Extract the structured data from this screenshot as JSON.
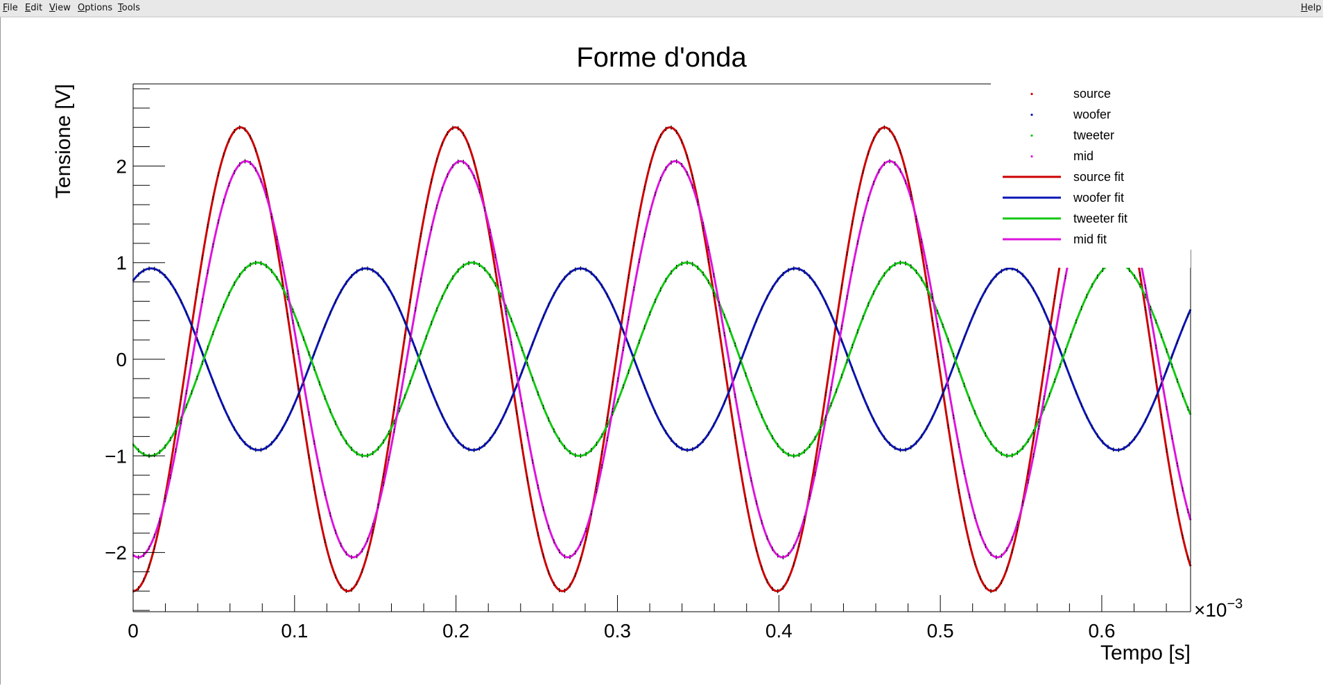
{
  "menu": {
    "file": "File",
    "edit": "Edit",
    "view": "View",
    "options": "Options",
    "tools": "Tools",
    "help": "Help"
  },
  "colors": {
    "source": "#cc0000",
    "woofer": "#0a14b4",
    "tweeter": "#14c814",
    "mid": "#dc14dc",
    "markers": "#000000"
  },
  "chart_data": {
    "type": "line",
    "title": "Forme d'onda",
    "xlabel": "Tempo [s]",
    "ylabel": "Tensione [V]",
    "x_multiplier": "×10",
    "x_multiplier_exp": "−3",
    "xlim": [
      0,
      0.000655
    ],
    "ylim": [
      -2.8,
      2.85
    ],
    "xticks": [
      0,
      0.1,
      0.2,
      0.3,
      0.4,
      0.5,
      0.6
    ],
    "xtick_labels": [
      "0",
      "0.1",
      "0.2",
      "0.3",
      "0.4",
      "0.5",
      "0.6"
    ],
    "yticks": [
      -2,
      -1,
      0,
      1,
      2
    ],
    "ytick_labels": [
      "−2",
      "−1",
      "0",
      "1",
      "2"
    ],
    "grid": false,
    "legend_position": "top-right",
    "sampling_interval_s": 3.3e-06,
    "series": [
      {
        "name": "source",
        "kind": "points",
        "color_key": "source",
        "amplitude": 2.4,
        "frequency_hz": 7520,
        "phase_rad": -1.5708,
        "offset": 0
      },
      {
        "name": "woofer",
        "kind": "points",
        "color_key": "woofer",
        "amplitude": 0.94,
        "frequency_hz": 7520,
        "phase_rad": 1.047,
        "offset": 0
      },
      {
        "name": "tweeter",
        "kind": "points",
        "color_key": "tweeter",
        "amplitude": 1.0,
        "frequency_hz": 7520,
        "phase_rad": -2.064,
        "offset": 0
      },
      {
        "name": "mid",
        "kind": "points",
        "color_key": "mid",
        "amplitude": 2.05,
        "frequency_hz": 7520,
        "phase_rad": -1.726,
        "offset": 0
      },
      {
        "name": "source fit",
        "kind": "line",
        "color_key": "source",
        "amplitude": 2.4,
        "frequency_hz": 7520,
        "phase_rad": -1.5708,
        "offset": 0
      },
      {
        "name": "woofer fit",
        "kind": "line",
        "color_key": "woofer",
        "amplitude": 0.94,
        "frequency_hz": 7520,
        "phase_rad": 1.047,
        "offset": 0
      },
      {
        "name": "tweeter fit",
        "kind": "line",
        "color_key": "tweeter",
        "amplitude": 1.0,
        "frequency_hz": 7520,
        "phase_rad": -2.064,
        "offset": 0
      },
      {
        "name": "mid fit",
        "kind": "line",
        "color_key": "mid",
        "amplitude": 2.05,
        "frequency_hz": 7520,
        "phase_rad": -1.726,
        "offset": 0
      }
    ]
  }
}
